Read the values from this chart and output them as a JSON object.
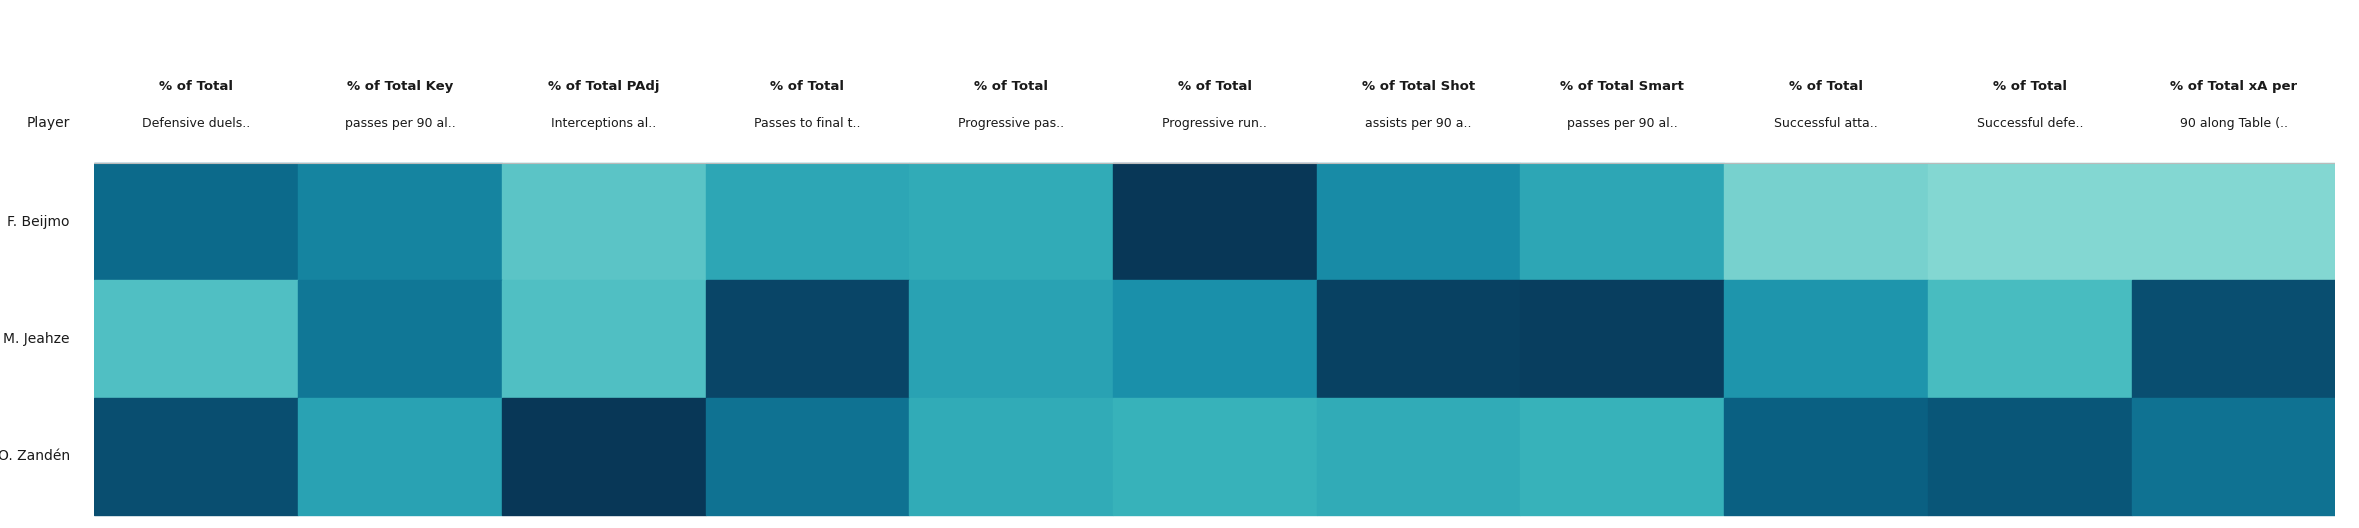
{
  "players": [
    "F. Beijmo",
    "M. Jeahze",
    "O. Zandén"
  ],
  "columns_line1": [
    "% of Total",
    "% of Total Key",
    "% of Total PAdj",
    "% of Total",
    "% of Total",
    "% of Total",
    "% of Total Shot",
    "% of Total Smart",
    "% of Total",
    "% of Total",
    "% of Total xA per"
  ],
  "columns_line2": [
    "Defensive duels..",
    "passes per 90 al..",
    "Interceptions al..",
    "Passes to final t..",
    "Progressive pas..",
    "Progressive run..",
    "assists per 90 a..",
    "passes per 90 al..",
    "Successful atta..",
    "Successful defe..",
    "90 along Table (.."
  ],
  "header_label": "Player",
  "values": [
    [
      0.65,
      0.55,
      0.25,
      0.4,
      0.38,
      0.95,
      0.52,
      0.4,
      0.18,
      0.15,
      0.15
    ],
    [
      0.28,
      0.6,
      0.28,
      0.85,
      0.42,
      0.5,
      0.88,
      0.9,
      0.48,
      0.3,
      0.8
    ],
    [
      0.8,
      0.42,
      0.95,
      0.62,
      0.38,
      0.35,
      0.38,
      0.35,
      0.7,
      0.75,
      0.62
    ]
  ],
  "cmap_stops": [
    "#b8ede6",
    "#7dd4d0",
    "#3ab5bc",
    "#1a90aa",
    "#0a6688",
    "#09486a",
    "#07304f"
  ],
  "background_color": "#ffffff",
  "text_color": "#1a1a1a",
  "header_fontsize": 10,
  "player_fontsize": 10
}
